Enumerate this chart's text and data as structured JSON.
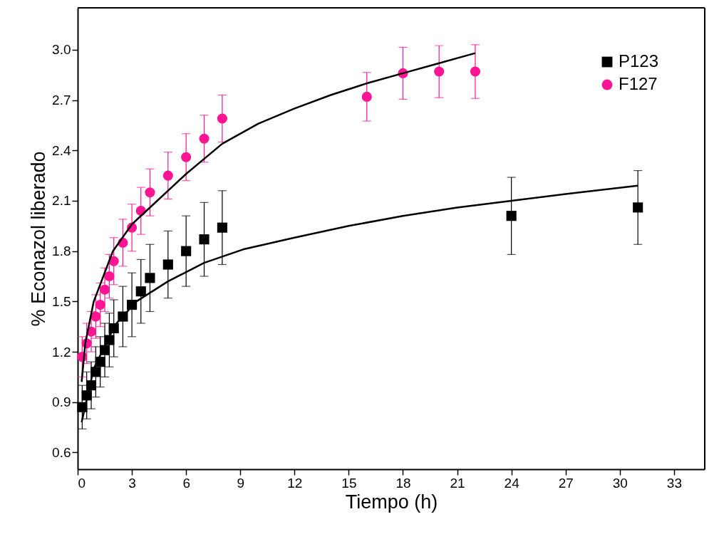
{
  "chart_data": {
    "type": "scatter",
    "xlabel": "Tiempo (h)",
    "ylabel": "% Econazol liberado",
    "xlim": [
      0,
      34.7
    ],
    "ylim": [
      0.5,
      3.25
    ],
    "xticks": [
      0,
      3,
      6,
      9,
      12,
      15,
      18,
      21,
      24,
      27,
      30,
      33
    ],
    "yticks": [
      0.6,
      0.9,
      1.2,
      1.5,
      1.8,
      2.1,
      2.4,
      2.7,
      {
        "value": 3.0,
        "label": "3.0"
      }
    ],
    "grid": false,
    "legend": "top right",
    "series": [
      {
        "name": "P123",
        "color": "#000000",
        "marker": "square",
        "x": [
          0.25,
          0.5,
          0.75,
          1,
          1.25,
          1.5,
          1.75,
          2,
          2.5,
          3,
          3.5,
          4,
          5,
          6,
          7,
          8,
          24,
          31
        ],
        "values": [
          0.87,
          0.94,
          1.0,
          1.08,
          1.14,
          1.21,
          1.27,
          1.34,
          1.41,
          1.48,
          1.56,
          1.64,
          1.72,
          1.8,
          1.87,
          1.94,
          2.01,
          2.06
        ],
        "errors": [
          0.13,
          0.14,
          0.14,
          0.15,
          0.15,
          0.16,
          0.16,
          0.17,
          0.18,
          0.19,
          0.19,
          0.2,
          0.2,
          0.21,
          0.22,
          0.22,
          0.23,
          0.22
        ]
      },
      {
        "name": "F127",
        "color": "#ff1493",
        "marker": "circle",
        "x": [
          0.25,
          0.5,
          0.75,
          1,
          1.25,
          1.5,
          1.75,
          2,
          2.5,
          3,
          3.5,
          4,
          5,
          6,
          7,
          8,
          16,
          18,
          20,
          22
        ],
        "values": [
          1.17,
          1.25,
          1.32,
          1.41,
          1.48,
          1.57,
          1.65,
          1.74,
          1.85,
          1.94,
          2.04,
          2.15,
          2.25,
          2.36,
          2.47,
          2.59,
          2.72,
          2.86,
          2.87,
          2.87
        ],
        "errors": [
          0.12,
          0.12,
          0.12,
          0.13,
          0.13,
          0.13,
          0.13,
          0.14,
          0.14,
          0.14,
          0.14,
          0.14,
          0.14,
          0.14,
          0.14,
          0.14,
          0.145,
          0.155,
          0.155,
          0.16
        ]
      },
      {
        "type": "line",
        "color": "#000000",
        "line_style": "solid",
        "x": [
          0.22,
          0.89,
          2.07,
          3.25,
          5,
          7,
          9.15,
          12,
          15,
          18,
          21,
          24,
          27,
          31
        ],
        "values": [
          0.78,
          1.1,
          1.36,
          1.5,
          1.62,
          1.73,
          1.81,
          1.88,
          1.95,
          2.01,
          2.06,
          2.1,
          2.14,
          2.19
        ]
      },
      {
        "type": "line",
        "color": "#000000",
        "line_style": "solid",
        "x": [
          0.22,
          0.42,
          0.89,
          1.95,
          3,
          4.4,
          6,
          8,
          10,
          12,
          14,
          16,
          18,
          20,
          22
        ],
        "values": [
          1.02,
          1.25,
          1.5,
          1.8,
          1.96,
          2.1,
          2.26,
          2.44,
          2.56,
          2.65,
          2.73,
          2.8,
          2.86,
          2.92,
          2.98
        ]
      }
    ]
  }
}
